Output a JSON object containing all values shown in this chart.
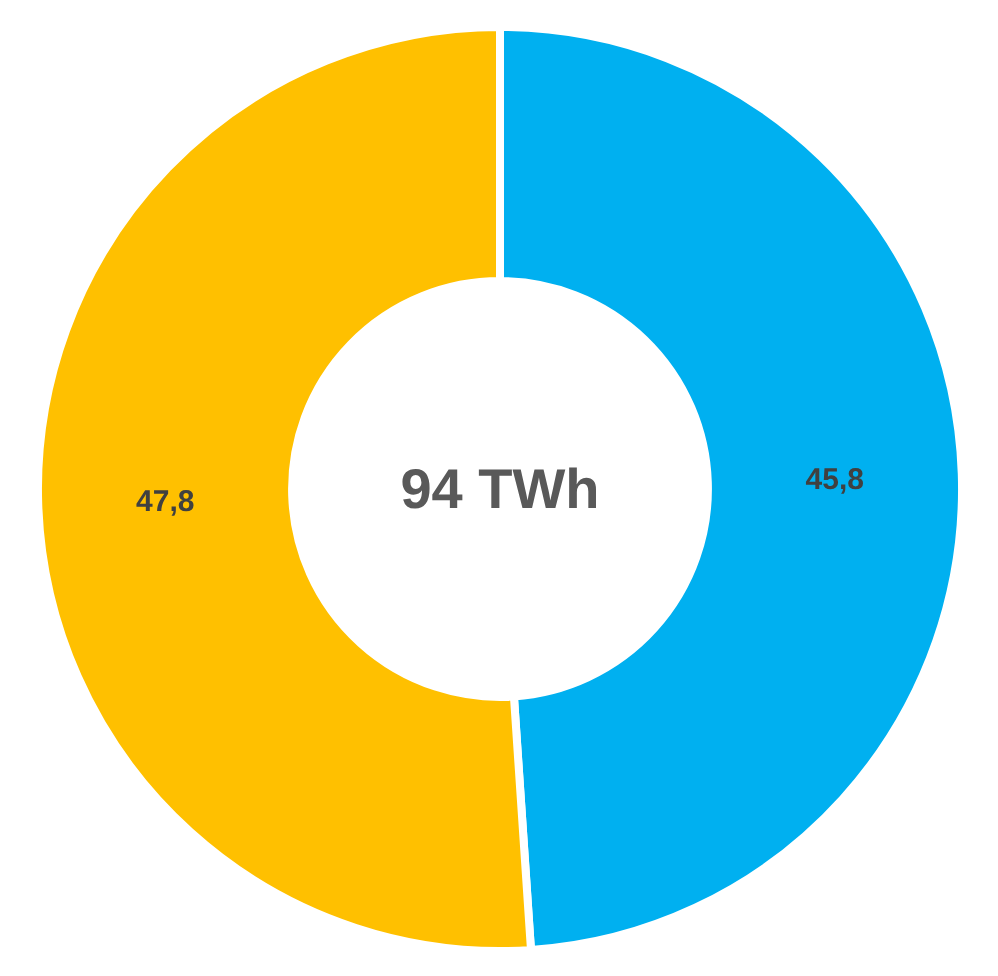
{
  "chart_data": {
    "type": "donut",
    "categories": [
      null,
      null
    ],
    "values": [
      45.8,
      47.8
    ],
    "colors": [
      "#00b0f0",
      "#ffc000"
    ],
    "value_labels": [
      "45,8",
      "47,8"
    ],
    "annotations": [
      "94 TWh"
    ]
  }
}
